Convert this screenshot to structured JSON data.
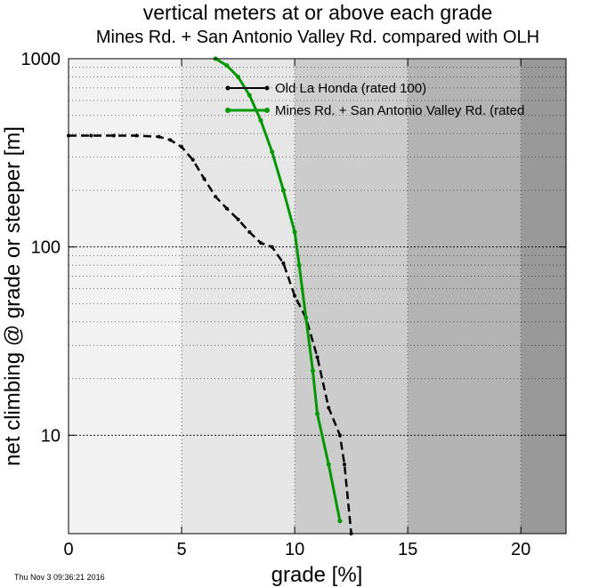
{
  "colors": {
    "band_fills": [
      "#f2f2f2",
      "#e6e6e6",
      "#cccccc",
      "#b3b3b3",
      "#999999"
    ],
    "olh": "#000000",
    "mines": "#009900"
  },
  "chart_data": {
    "type": "line",
    "title": "vertical meters at or above each grade",
    "subtitle": "Mines Rd. + San Antonio Valley Rd. compared with OLH",
    "xlabel": "grade [%]",
    "ylabel": "net climbing @ grade or steeper [m]",
    "xlim": [
      0,
      22
    ],
    "ylim": [
      3,
      1000
    ],
    "yscale": "log",
    "grid": true,
    "legend_position": "top-center",
    "background_bands": [
      {
        "from": 0,
        "to": 5
      },
      {
        "from": 5,
        "to": 10
      },
      {
        "from": 10,
        "to": 15
      },
      {
        "from": 15,
        "to": 20
      },
      {
        "from": 20,
        "to": 22
      }
    ],
    "x_ticks": [
      {
        "value": 0,
        "label": "0"
      },
      {
        "value": 5,
        "label": "5"
      },
      {
        "value": 10,
        "label": "10"
      },
      {
        "value": 15,
        "label": "15"
      },
      {
        "value": 20,
        "label": "20"
      }
    ],
    "y_ticks": [
      {
        "value": 10,
        "label": "10"
      },
      {
        "value": 100,
        "label": "100"
      },
      {
        "value": 1000,
        "label": "1000"
      }
    ],
    "series": [
      {
        "name": "Old La Honda (rated 100)",
        "color": "#000000",
        "style": "dashed",
        "x": [
          0,
          1,
          2,
          3,
          4,
          4.5,
          5,
          5.5,
          6,
          6.5,
          7,
          7.5,
          8,
          8.5,
          9,
          9.5,
          10,
          10.5,
          11,
          11.5,
          12,
          12.2,
          12.5
        ],
        "y": [
          390,
          390,
          390,
          390,
          385,
          370,
          340,
          290,
          230,
          185,
          160,
          140,
          120,
          105,
          100,
          82,
          55,
          42,
          26,
          14,
          10,
          7,
          3
        ]
      },
      {
        "name": "Mines Rd. + San Antonio Valley Rd. (rated",
        "color": "#009900",
        "style": "solid",
        "x": [
          6.5,
          7,
          7.5,
          8,
          8.5,
          9,
          9.5,
          10,
          10.2,
          10.5,
          10.8,
          11,
          11.5,
          12
        ],
        "y": [
          1000,
          920,
          800,
          640,
          470,
          320,
          200,
          120,
          80,
          42,
          22,
          13,
          7,
          3.5
        ]
      }
    ]
  },
  "timestamp": "Thu Nov  3 09:36:21 2016"
}
